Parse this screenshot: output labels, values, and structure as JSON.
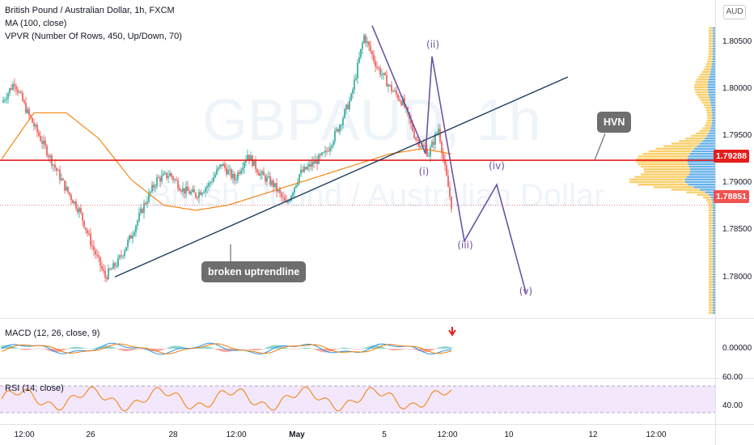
{
  "header": {
    "symbol_line": "British Pound / Australian Dollar, 1h, FXCM",
    "indicator_ma": "MA (100, close)",
    "indicator_vpvr": "VPVR (Number Of Rows, 450, Up/Down, 70)"
  },
  "currency_badge": "AUD",
  "watermark": {
    "ticker": "GBPAUD, 1h",
    "name": "British Pound / Australian Dollar"
  },
  "price_axis": {
    "ticks": [
      "1.80500",
      "1.80000",
      "1.79500",
      "1.79000",
      "1.78500",
      "1.78000"
    ],
    "hvn_level_label": "1.79288",
    "last_price_label": "1.78851"
  },
  "macd_pane": {
    "title": "MACD (12, 26, close, 9)",
    "tick": "0.00000"
  },
  "rsi_pane": {
    "title": "RSI (14, close)",
    "ticks": [
      "60.00",
      "40.00"
    ]
  },
  "time_axis": {
    "ticks": [
      "12:00",
      "26",
      "28",
      "12:00",
      "May",
      "5",
      "12:00",
      "10",
      "12",
      "12:00"
    ]
  },
  "annotations": {
    "trendline_label": "broken uptrendline",
    "hvn_label": "HVN",
    "wave_labels": [
      "(i)",
      "(ii)",
      "(iii)",
      "(iv)",
      "(v)"
    ]
  },
  "colors": {
    "up": "#26a69a",
    "down": "#ef5350",
    "ma": "#f57c00",
    "trendline": "#1e3a5f",
    "wave": "#6c53a3",
    "hvn_line": "#e41d1d",
    "vpvr_yellow": "#f9c74f",
    "vpvr_blue": "#4aa3e8"
  },
  "chart_data": {
    "type": "line",
    "title": "British Pound / Australian Dollar, 1h, FXCM",
    "ylim": [
      1.7775,
      1.8085
    ],
    "x": [
      "12:00",
      "26",
      "28",
      "12:00",
      "May",
      "5",
      "12:00",
      "10",
      "12",
      "12:00"
    ],
    "series": [
      {
        "name": "GBPAUD close",
        "points": [
          [
            0,
            1.7985
          ],
          [
            8,
            1.8005
          ],
          [
            16,
            1.7975
          ],
          [
            24,
            1.795
          ],
          [
            32,
            1.7925
          ],
          [
            40,
            1.79
          ],
          [
            48,
            1.788
          ],
          [
            56,
            1.7845
          ],
          [
            64,
            1.7815
          ],
          [
            72,
            1.783
          ],
          [
            80,
            1.7855
          ],
          [
            88,
            1.7885
          ],
          [
            96,
            1.791
          ],
          [
            104,
            1.7915
          ],
          [
            112,
            1.79
          ],
          [
            120,
            1.7895
          ],
          [
            128,
            1.7905
          ],
          [
            136,
            1.7925
          ],
          [
            144,
            1.791
          ],
          [
            152,
            1.7935
          ],
          [
            160,
            1.7915
          ],
          [
            168,
            1.7905
          ],
          [
            176,
            1.7885
          ],
          [
            184,
            1.7915
          ],
          [
            192,
            1.7925
          ],
          [
            200,
            1.7935
          ],
          [
            208,
            1.796
          ],
          [
            216,
            1.799
          ],
          [
            224,
            1.805
          ],
          [
            232,
            1.802
          ],
          [
            240,
            1.8
          ],
          [
            248,
            1.7985
          ],
          [
            256,
            1.795
          ],
          [
            264,
            1.7935
          ],
          [
            270,
            1.796
          ],
          [
            274,
            1.792
          ],
          [
            278,
            1.7885
          ]
        ]
      },
      {
        "name": "MA (100, close)",
        "points": [
          [
            0,
            1.793
          ],
          [
            20,
            1.7975
          ],
          [
            40,
            1.7975
          ],
          [
            60,
            1.795
          ],
          [
            80,
            1.791
          ],
          [
            100,
            1.7885
          ],
          [
            120,
            1.788
          ],
          [
            140,
            1.7885
          ],
          [
            160,
            1.7895
          ],
          [
            180,
            1.7905
          ],
          [
            200,
            1.7915
          ],
          [
            220,
            1.7925
          ],
          [
            240,
            1.7935
          ],
          [
            260,
            1.794
          ],
          [
            278,
            1.7935
          ]
        ]
      }
    ],
    "annotations": {
      "hvn_level": 1.79288,
      "last_price": 1.78851,
      "trendline": {
        "from": [
          70,
          1.7815
        ],
        "to": [
          350,
          1.801
        ]
      },
      "wave_count": [
        {
          "label": "(i)",
          "x": 262,
          "y": 1.7935
        },
        {
          "label": "(ii)",
          "x": 266,
          "y": 1.803
        },
        {
          "label": "(iii)",
          "x": 286,
          "y": 1.785
        },
        {
          "label": "(iv)",
          "x": 306,
          "y": 1.7905
        },
        {
          "label": "(v)",
          "x": 324,
          "y": 1.78
        }
      ]
    },
    "macd": {
      "zero": 0.0
    },
    "rsi": {
      "upper": 70,
      "lower": 30,
      "ticks": [
        60,
        40
      ]
    }
  }
}
